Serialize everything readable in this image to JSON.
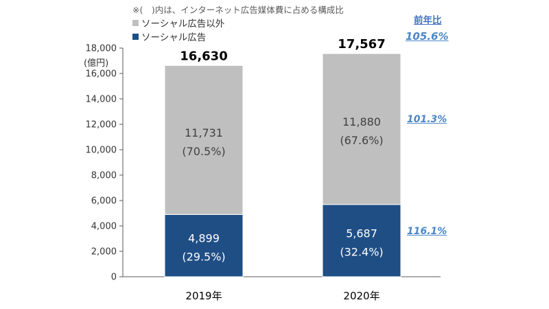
{
  "note": "※(　)内は、インターネット広告媒体費に占める構成比",
  "yoy_title": "前年比",
  "unit_label": "(億円)",
  "colors": {
    "other": "#bfbfbf",
    "social": "#1f4e85",
    "yoy": "#4a86c5"
  },
  "chart_data": {
    "type": "bar",
    "stacked": true,
    "categories": [
      "2019年",
      "2020年"
    ],
    "series": [
      {
        "name": "ソーシャル広告",
        "values": [
          4899,
          5687
        ],
        "labels": [
          "4,899",
          "5,687"
        ],
        "shares": [
          "(29.5%)",
          "(32.4%)"
        ]
      },
      {
        "name": "ソーシャル広告以外",
        "values": [
          11731,
          11880
        ],
        "labels": [
          "11,731",
          "11,880"
        ],
        "shares": [
          "(70.5%)",
          "(67.6%)"
        ]
      }
    ],
    "totals": [
      "16,630",
      "17,567"
    ],
    "yoy": {
      "total": "105.6%",
      "other": "101.3%",
      "social": "116.1%"
    },
    "ylim": [
      0,
      18000
    ],
    "yticks": [
      0,
      2000,
      4000,
      6000,
      8000,
      10000,
      12000,
      14000,
      16000,
      18000
    ],
    "ytick_labels": [
      "0",
      "2,000",
      "4,000",
      "6,000",
      "8,000",
      "10,000",
      "12,000",
      "14,000",
      "16,000",
      "18,000"
    ],
    "grid": false
  }
}
